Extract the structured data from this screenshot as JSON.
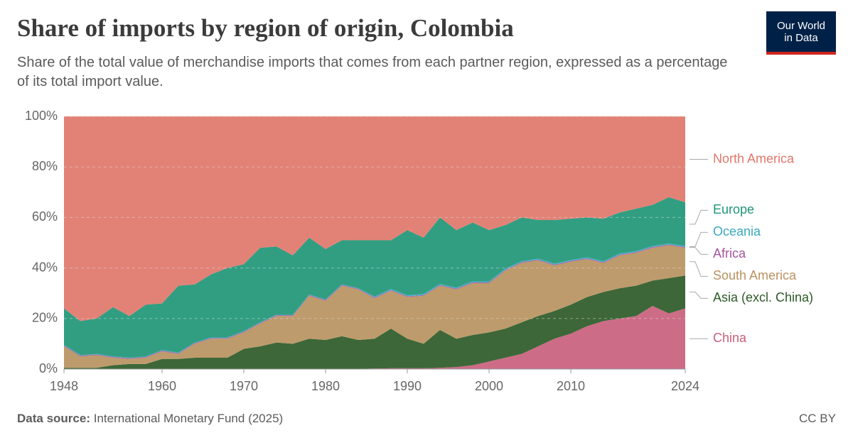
{
  "logo": [
    "Our World",
    "in Data"
  ],
  "footer": {
    "source_label": "Data source:",
    "source": "International Monetary Fund (2025)",
    "license": "CC BY"
  },
  "chart_data": {
    "type": "area",
    "title": "Share of imports by region of origin, Colombia",
    "subtitle": "Share of the total value of merchandise imports that comes from each partner region, expressed as a percentage of its total import value.",
    "x": [
      1948,
      1950,
      1952,
      1954,
      1956,
      1958,
      1960,
      1962,
      1964,
      1966,
      1968,
      1970,
      1972,
      1974,
      1976,
      1978,
      1980,
      1982,
      1984,
      1986,
      1988,
      1990,
      1992,
      1994,
      1996,
      1998,
      2000,
      2002,
      2004,
      2006,
      2008,
      2010,
      2012,
      2014,
      2016,
      2018,
      2020,
      2022,
      2024
    ],
    "series": [
      {
        "name": "China",
        "color": "#c9607c",
        "values": [
          0,
          0,
          0,
          0,
          0,
          0,
          0,
          0,
          0,
          0,
          0,
          0,
          0,
          0,
          0,
          0,
          0,
          0,
          0.1,
          0.2,
          0.3,
          0.3,
          0.3,
          0.5,
          0.8,
          1.5,
          3,
          4.5,
          6,
          9,
          12,
          14,
          17,
          19,
          20,
          21,
          25,
          22,
          24
        ]
      },
      {
        "name": "Asia (excl. China)",
        "color": "#2d5a27",
        "values": [
          0.5,
          0.5,
          0.5,
          1.5,
          2,
          2,
          4,
          4,
          4.5,
          4.5,
          4.5,
          8,
          9,
          10.5,
          10,
          12,
          11.5,
          13,
          11.4,
          11.8,
          15.7,
          11.7,
          9.7,
          15,
          11.2,
          12,
          11.5,
          11.5,
          12.5,
          12,
          11,
          11.5,
          11.5,
          11.5,
          12,
          12,
          10,
          14,
          13
        ]
      },
      {
        "name": "South America",
        "color": "#b99260",
        "values": [
          8.5,
          4.5,
          5,
          3,
          2,
          2.5,
          3,
          2,
          5.5,
          7.5,
          7.5,
          6.5,
          9,
          10.5,
          11,
          17,
          15.5,
          20,
          20,
          16,
          15,
          16.5,
          19,
          17.5,
          19.5,
          20.5,
          19.5,
          23,
          23.5,
          22,
          18,
          17,
          15,
          11.5,
          13,
          13,
          13,
          13,
          11
        ]
      },
      {
        "name": "Africa",
        "color": "#a2559c",
        "values": [
          0.3,
          0.3,
          0.3,
          0.3,
          0.3,
          0.3,
          0.3,
          0.3,
          0.3,
          0.3,
          0.3,
          0.3,
          0.3,
          0.3,
          0.3,
          0.3,
          0.3,
          0.3,
          0.3,
          0.3,
          0.3,
          0.3,
          0.3,
          0.3,
          0.3,
          0.3,
          0.3,
          0.3,
          0.3,
          0.3,
          0.3,
          0.3,
          0.3,
          0.3,
          0.3,
          0.3,
          0.3,
          0.3,
          0.3
        ]
      },
      {
        "name": "Oceania",
        "color": "#3aa7c0",
        "values": [
          0.2,
          0.2,
          0.2,
          0.2,
          0.2,
          0.2,
          0.2,
          0.2,
          0.2,
          0.2,
          0.2,
          0.2,
          0.2,
          0.2,
          0.2,
          0.2,
          0.2,
          0.2,
          0.2,
          0.4,
          0.4,
          0.4,
          0.4,
          0.4,
          0.4,
          0.4,
          0.4,
          0.4,
          0.4,
          0.4,
          0.4,
          0.4,
          0.4,
          0.4,
          0.4,
          0.4,
          0.4,
          0.4,
          0.4
        ]
      },
      {
        "name": "Europe",
        "color": "#1f9677",
        "values": [
          14.5,
          13.5,
          14,
          19.5,
          16.5,
          20.5,
          18.5,
          26.5,
          23,
          25,
          27.5,
          26.5,
          29.5,
          27,
          23.5,
          22.5,
          20,
          17.5,
          19,
          22.3,
          19.3,
          25.8,
          22.3,
          26.3,
          22.8,
          23.3,
          20.3,
          17.3,
          17.3,
          15.3,
          17.3,
          16.3,
          15.8,
          16.8,
          16.3,
          16.8,
          16.3,
          18.3,
          17.3
        ]
      },
      {
        "name": "North America",
        "color": "#e0776a",
        "values": [
          76,
          81,
          80,
          75.5,
          79,
          74.5,
          74,
          67,
          66.5,
          62.5,
          60,
          58.5,
          52,
          51.5,
          55,
          48,
          52.5,
          49,
          49,
          49,
          49,
          45,
          48,
          40,
          45,
          42,
          45,
          43,
          40,
          41,
          41,
          40.5,
          40,
          40.5,
          38,
          36.5,
          35,
          32,
          34
        ]
      }
    ],
    "xlim": [
      1948,
      2024
    ],
    "ylim": [
      0,
      100
    ],
    "xticks": [
      1948,
      1960,
      1970,
      1980,
      1990,
      2000,
      2010,
      2024
    ],
    "yticks": [
      {
        "value": 0,
        "label": "0%"
      },
      {
        "value": 20,
        "label": "20%"
      },
      {
        "value": 40,
        "label": "40%"
      },
      {
        "value": 60,
        "label": "60%"
      },
      {
        "value": 80,
        "label": "80%"
      },
      {
        "value": 100,
        "label": "100%"
      }
    ],
    "grid": true
  }
}
